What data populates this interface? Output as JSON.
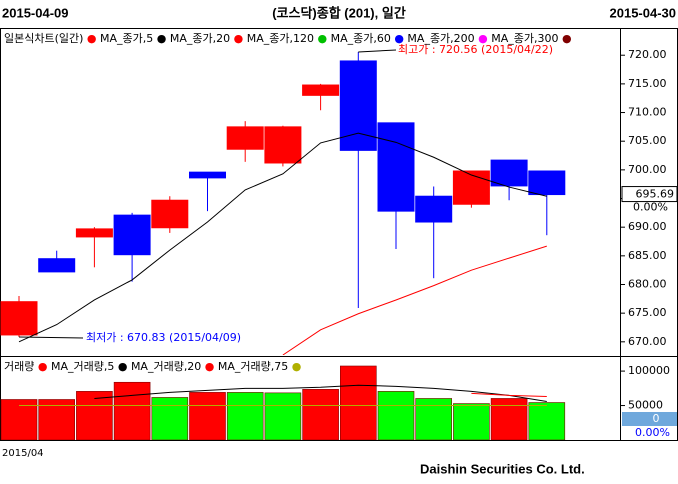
{
  "header": {
    "start_date": "2015-04-09",
    "title": "(코스닥)종합 (201), 일간",
    "end_date": "2015-04-30"
  },
  "chart_data": [
    {
      "type": "candlestick",
      "title": "일본식차트(일간)",
      "categories": [
        "2015/04",
        null,
        null,
        null,
        null,
        null,
        null,
        null,
        null,
        null,
        null,
        null,
        null,
        null,
        null
      ],
      "open": [
        671.2,
        684.5,
        688.3,
        692.1,
        689.9,
        699.6,
        703.6,
        701.2,
        713.0,
        719.0,
        708.2,
        695.4,
        694.0,
        701.7,
        699.8
      ],
      "high": [
        678.0,
        685.9,
        690.0,
        692.5,
        695.4,
        699.6,
        708.5,
        707.7,
        715.0,
        720.56,
        708.2,
        697.1,
        699.8,
        701.7,
        699.8
      ],
      "low": [
        670.83,
        682.2,
        683.0,
        680.5,
        689.0,
        692.8,
        701.4,
        700.6,
        710.4,
        675.9,
        686.2,
        681.1,
        693.4,
        694.7,
        688.6
      ],
      "close": [
        677.0,
        682.2,
        689.7,
        685.2,
        694.7,
        698.6,
        707.5,
        707.5,
        714.8,
        703.4,
        692.8,
        690.9,
        699.8,
        697.2,
        695.69
      ],
      "up_color": "#ff0000",
      "down_color": "#0000ff",
      "series": [
        {
          "name": "MA_종가,5",
          "color": "#000000",
          "values": [
            670.0,
            673.0,
            677.3,
            680.8,
            686.0,
            690.9,
            696.5,
            699.3,
            704.7,
            706.4,
            704.8,
            702.2,
            699.1,
            697.0,
            695.4
          ]
        },
        {
          "name": "MA_종가,20",
          "color": "#ff0000",
          "values": [
            null,
            null,
            null,
            null,
            null,
            null,
            null,
            667.7,
            672.1,
            674.9,
            677.3,
            679.8,
            682.5,
            684.6,
            686.7
          ]
        },
        {
          "name": "MA_종가,120",
          "color": "#00c000",
          "values": [
            null,
            null,
            null,
            null,
            null,
            null,
            null,
            null,
            null,
            null,
            null,
            null,
            null,
            null,
            null
          ]
        },
        {
          "name": "MA_종가,60",
          "color": "#0000ff",
          "values": [
            null,
            null,
            null,
            null,
            null,
            null,
            null,
            null,
            null,
            null,
            null,
            null,
            null,
            null,
            null
          ]
        },
        {
          "name": "MA_종가,200",
          "color": "#ff00ff",
          "values": [
            null,
            null,
            null,
            null,
            null,
            null,
            null,
            null,
            null,
            null,
            null,
            null,
            null,
            null,
            null
          ]
        },
        {
          "name": "MA_종가,300",
          "color": "#800000",
          "values": [
            null,
            null,
            null,
            null,
            null,
            null,
            null,
            null,
            null,
            null,
            null,
            null,
            null,
            null,
            null
          ]
        }
      ],
      "ylim": [
        667.7,
        724.4
      ],
      "yticks": [
        {
          "value": 670,
          "label": "670.00"
        },
        {
          "value": 675,
          "label": "675.00"
        },
        {
          "value": 680,
          "label": "680.00"
        },
        {
          "value": 685,
          "label": "685.00"
        },
        {
          "value": 690,
          "label": "690.00"
        },
        {
          "value": 695,
          "label": "695.00"
        },
        {
          "value": 700,
          "label": "700.00"
        },
        {
          "value": 705,
          "label": "705.00"
        },
        {
          "value": 710,
          "label": "710.00"
        },
        {
          "value": 715,
          "label": "715.00"
        },
        {
          "value": 720,
          "label": "720.00"
        }
      ],
      "current_price": 695.69,
      "change": "0.00%",
      "annotations": {
        "max": "최고가 : 720.56 (2015/04/22)",
        "min": "최저가 : 670.83 (2015/04/09)"
      }
    },
    {
      "type": "bar",
      "title": "거래량",
      "values": [
        58800,
        58800,
        70600,
        83800,
        61800,
        69100,
        69100,
        68400,
        73500,
        107400,
        70600,
        60300,
        52900,
        60300,
        54400
      ],
      "colors": [
        "#ff0000",
        "#ff0000",
        "#ff0000",
        "#ff0000",
        "#00ff00",
        "#ff0000",
        "#00ff00",
        "#00ff00",
        "#ff0000",
        "#ff0000",
        "#00ff00",
        "#00ff00",
        "#00ff00",
        "#ff0000",
        "#00ff00"
      ],
      "series": [
        {
          "name": "MA_거래량,5",
          "color": "#000000",
          "values": [
            null,
            null,
            60300,
            64700,
            69100,
            72100,
            75000,
            75000,
            76500,
            79400,
            77900,
            75000,
            70600,
            64700,
            55900
          ]
        },
        {
          "name": "MA_거래량,20",
          "color": "#ff0000",
          "values": [
            null,
            null,
            null,
            null,
            null,
            null,
            null,
            null,
            null,
            null,
            null,
            null,
            67600,
            64700,
            63200
          ]
        },
        {
          "name": "MA_거래량,75",
          "color": "#b0b000",
          "values": [
            50000,
            50000,
            50000,
            50000,
            50000,
            50000,
            50000,
            50000,
            50000,
            50000,
            50000,
            50000,
            50000,
            50000,
            50000
          ]
        }
      ],
      "ylim": [
        0,
        119000
      ],
      "yticks": [
        50000,
        100000
      ],
      "current_value": 0,
      "change": "0.00%"
    }
  ],
  "footer": "Daishin Securities Co. Ltd."
}
